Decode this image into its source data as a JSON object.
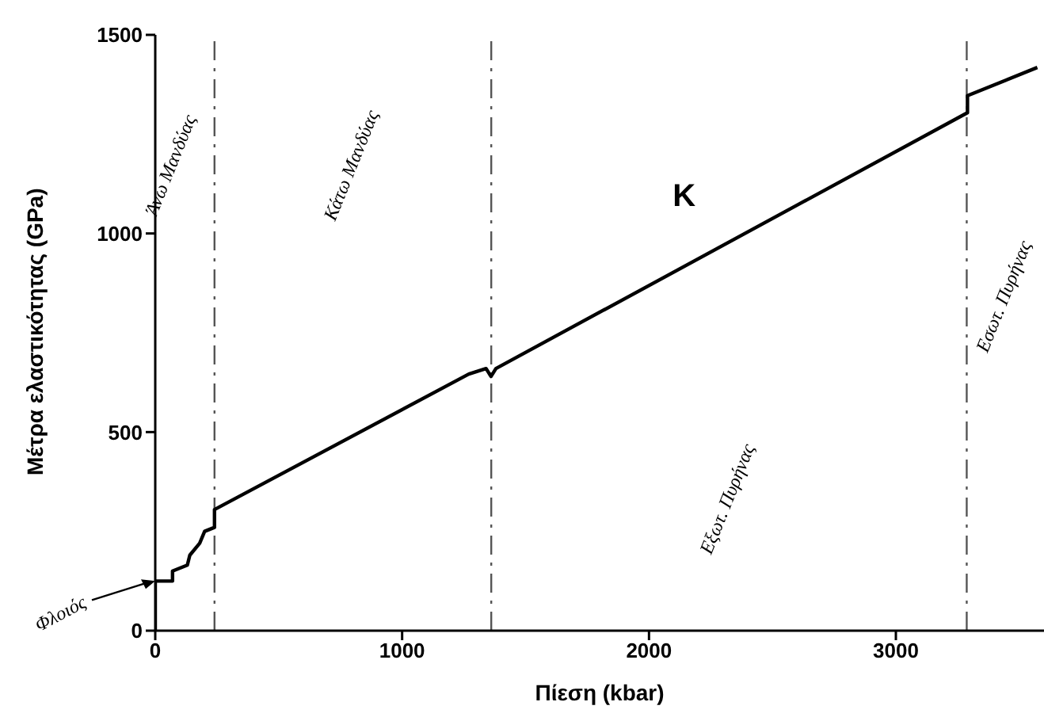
{
  "chart_data": {
    "type": "line",
    "xlabel": "Πίεση (kbar)",
    "ylabel": "Μέτρα ελαστικότητας (GPa)",
    "xlim": [
      0,
      3600
    ],
    "xticks": [
      0,
      1000,
      2000,
      3000
    ],
    "ylim": [
      0,
      1500
    ],
    "yticks": [
      0,
      500,
      1000,
      1500
    ],
    "grid": false,
    "legend": false,
    "marker": "none",
    "line_style": "solid",
    "series": [
      {
        "name": "K",
        "color": "#000000",
        "x": [
          0,
          0,
          70,
          70,
          130,
          140,
          180,
          200,
          240,
          240,
          1270,
          1340,
          1360,
          1380,
          3290,
          3290,
          3573
        ],
        "values": [
          0,
          125,
          125,
          150,
          165,
          190,
          220,
          250,
          260,
          305,
          646,
          660,
          640,
          660,
          1304,
          1347,
          1418
        ]
      }
    ],
    "ref_lines": [
      {
        "axis": "x",
        "value": 240,
        "color": "#555555",
        "line_style": "dashed"
      },
      {
        "axis": "x",
        "value": 1361,
        "color": "#555555",
        "line_style": "dashed"
      },
      {
        "axis": "x",
        "value": 3287,
        "color": "#555555",
        "line_style": "dashed"
      }
    ],
    "annotations": [
      {
        "text": "Φλοιός",
        "x": 0,
        "y": 125
      },
      "Άνω Μανδύας",
      "Κάτω Μανδύας",
      "Εξωτ. Πυρήνας",
      "Εσωτ. Πυρήνας"
    ]
  }
}
